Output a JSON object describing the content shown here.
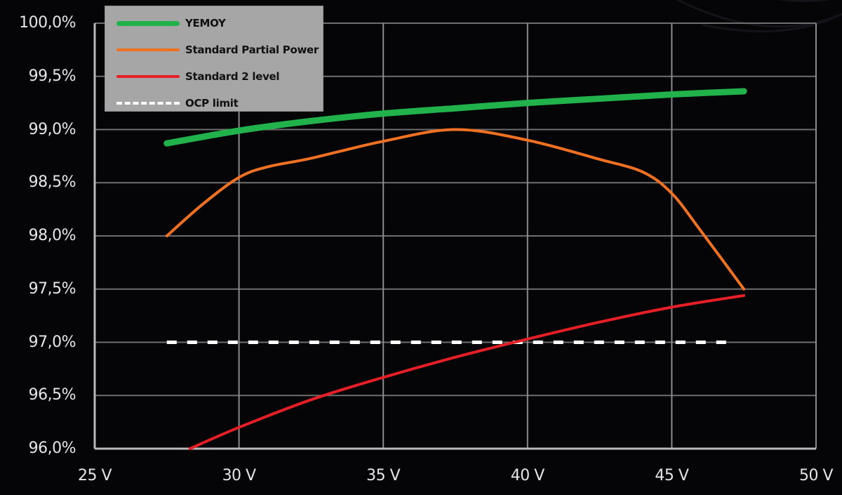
{
  "chart_data": {
    "type": "line",
    "title": "",
    "xlabel": "",
    "ylabel": "",
    "x_unit": "V",
    "xlim": [
      25,
      50
    ],
    "ylim": [
      96.0,
      100.0
    ],
    "grid": true,
    "legend_position": "top-left",
    "x_ticks": [
      "25 V",
      "30 V",
      "35 V",
      "40 V",
      "45 V",
      "50 V"
    ],
    "y_ticks": [
      "100,0%",
      "99,5%",
      "99,0%",
      "98,5%",
      "98,0%",
      "97,5%",
      "97,0%",
      "96,5%",
      "96,0%"
    ],
    "series": [
      {
        "name": "YEMOY",
        "color": "#22b24c",
        "style": "solid-thick",
        "x": [
          27.5,
          30,
          32.5,
          35,
          37.5,
          40,
          42.5,
          45,
          47.5
        ],
        "values": [
          98.87,
          98.99,
          99.08,
          99.15,
          99.2,
          99.25,
          99.29,
          99.33,
          99.36
        ]
      },
      {
        "name": "Standard Partial Power",
        "color": "#f07122",
        "style": "solid",
        "x": [
          27.5,
          28.75,
          30,
          31,
          32.5,
          35,
          37.5,
          40,
          42.5,
          44,
          45,
          46,
          47.5
        ],
        "values": [
          98.0,
          98.3,
          98.55,
          98.65,
          98.73,
          98.89,
          99.0,
          98.9,
          98.72,
          98.6,
          98.4,
          98.05,
          97.5
        ]
      },
      {
        "name": "Standard 2 level",
        "color": "#e61e25",
        "style": "solid",
        "x": [
          28.3,
          30,
          32.5,
          35,
          37.5,
          40,
          42.5,
          45,
          47.5
        ],
        "values": [
          96.0,
          96.2,
          96.46,
          96.67,
          96.86,
          97.03,
          97.19,
          97.33,
          97.44
        ]
      },
      {
        "name": "OCP limit",
        "color": "#ffffff",
        "style": "dashed",
        "x": [
          27.5,
          47.0
        ],
        "values": [
          97.0,
          97.0
        ]
      }
    ]
  },
  "legend": {
    "items": [
      {
        "label": "YEMOY"
      },
      {
        "label": "Standard Partial Power"
      },
      {
        "label": "Standard 2 level"
      },
      {
        "label": "OCP limit"
      }
    ]
  }
}
